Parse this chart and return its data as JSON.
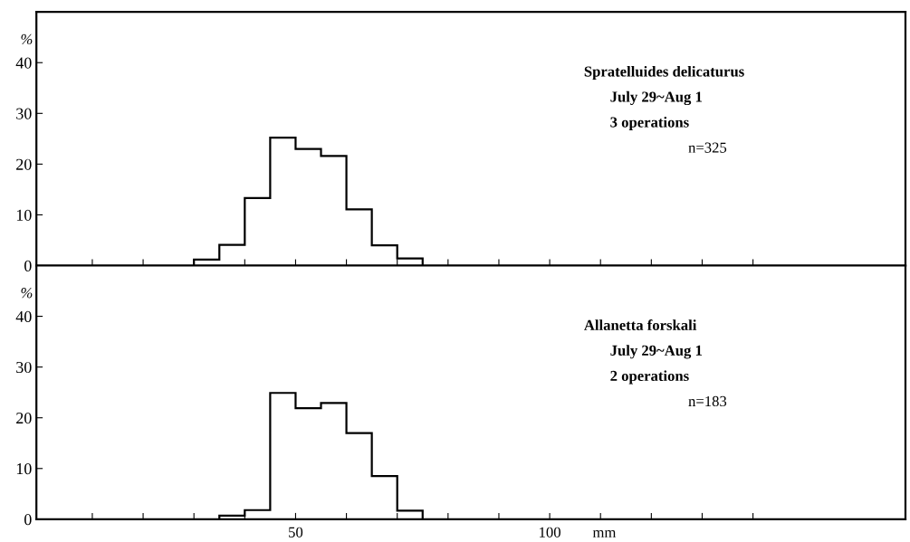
{
  "chart_data": [
    {
      "type": "histogram",
      "ylabel": "%",
      "bins": [
        30,
        35,
        40,
        45,
        50,
        55,
        60,
        65,
        70,
        75
      ],
      "values": [
        1.2,
        4.1,
        13.3,
        25.2,
        23.0,
        21.6,
        11.1,
        4.0,
        1.4
      ],
      "color": "#000000",
      "xlim": [
        -1,
        170
      ],
      "xticks": [
        {
          "value": 10,
          "label": null
        },
        {
          "value": 20,
          "label": null
        },
        {
          "value": 30,
          "label": null
        },
        {
          "value": 40,
          "label": null
        },
        {
          "value": 50,
          "label": null
        },
        {
          "value": 60,
          "label": null
        },
        {
          "value": 70,
          "label": null
        },
        {
          "value": 80,
          "label": null
        },
        {
          "value": 90,
          "label": null
        },
        {
          "value": 100,
          "label": null
        },
        {
          "value": 110,
          "label": null
        },
        {
          "value": 120,
          "label": null
        },
        {
          "value": 130,
          "label": null
        },
        {
          "value": 140,
          "label": null
        }
      ],
      "ylim": [
        0,
        50
      ],
      "yticks": [
        0,
        10,
        20,
        30,
        40
      ],
      "tick_labels": "y",
      "grid": false,
      "legend": false,
      "annotations": [
        "Spratelluides delicaturus",
        "July 29~Aug 1",
        "3 operations",
        "n=325"
      ]
    },
    {
      "type": "histogram",
      "ylabel": "%",
      "xlabel": "mm",
      "bins": [
        35,
        40,
        45,
        50,
        55,
        60,
        65,
        70,
        75
      ],
      "values": [
        0.7,
        1.8,
        24.9,
        21.9,
        22.9,
        17.0,
        8.5,
        1.7
      ],
      "color": "#000000",
      "xlim": [
        -1,
        170
      ],
      "xticks": [
        {
          "value": 10,
          "label": null
        },
        {
          "value": 20,
          "label": null
        },
        {
          "value": 30,
          "label": null
        },
        {
          "value": 40,
          "label": null
        },
        50,
        {
          "value": 60,
          "label": null
        },
        {
          "value": 70,
          "label": null
        },
        {
          "value": 80,
          "label": null
        },
        {
          "value": 90,
          "label": null
        },
        100,
        {
          "value": 110,
          "label": null
        },
        {
          "value": 120,
          "label": null
        },
        {
          "value": 130,
          "label": null
        },
        {
          "value": 140,
          "label": null
        }
      ],
      "ylim": [
        0,
        50
      ],
      "yticks": [
        0,
        10,
        20,
        30,
        40
      ],
      "grid": false,
      "legend": false,
      "annotations": [
        "Allanetta forskali",
        "July 29~Aug 1",
        "2 operations",
        "n=183"
      ]
    }
  ]
}
